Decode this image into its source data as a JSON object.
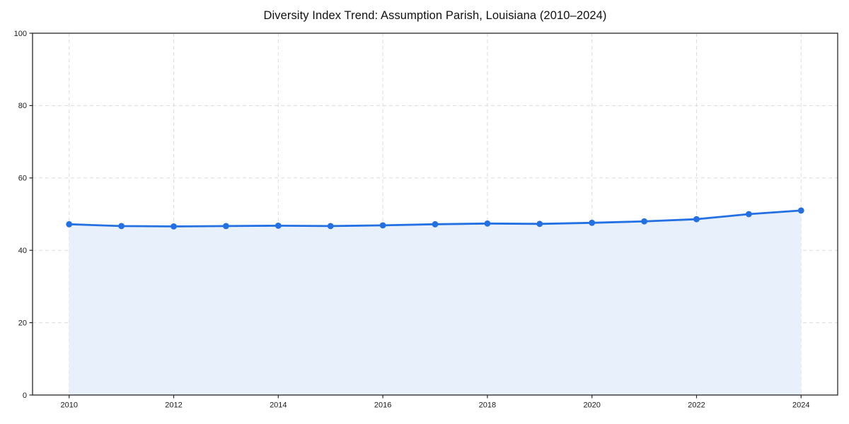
{
  "page": {
    "title": "Diversity Index Trend: Assumption Parish, Louisiana (2010–2024)"
  },
  "chart_data": {
    "type": "area",
    "title": "Diversity Index Trend: Assumption Parish, Louisiana (2010–2024)",
    "x": [
      2010,
      2011,
      2012,
      2013,
      2014,
      2015,
      2016,
      2017,
      2018,
      2019,
      2020,
      2021,
      2022,
      2023,
      2024
    ],
    "series": [
      {
        "name": "Diversity Index",
        "values": [
          47.2,
          46.7,
          46.6,
          46.7,
          46.8,
          46.7,
          46.9,
          47.2,
          47.4,
          47.3,
          47.6,
          48.0,
          48.6,
          50.0,
          51.0
        ]
      }
    ],
    "xlabel": "",
    "ylabel": "",
    "xlim": [
      2009.3,
      2024.7
    ],
    "ylim": [
      0,
      100
    ],
    "xticks": [
      2010,
      2012,
      2014,
      2016,
      2018,
      2020,
      2022,
      2024
    ],
    "yticks": [
      0,
      20,
      40,
      60,
      80,
      100
    ],
    "grid": true,
    "grid_style": "dashed",
    "legend_position": "none",
    "line_color": "#2270e2",
    "marker_color": "#2270e2",
    "marker_shape": "circle",
    "fill_color": "#e8f0fc",
    "grid_color": "#dcdcdc",
    "axis_color": "#262626",
    "background_color": "#ffffff"
  }
}
